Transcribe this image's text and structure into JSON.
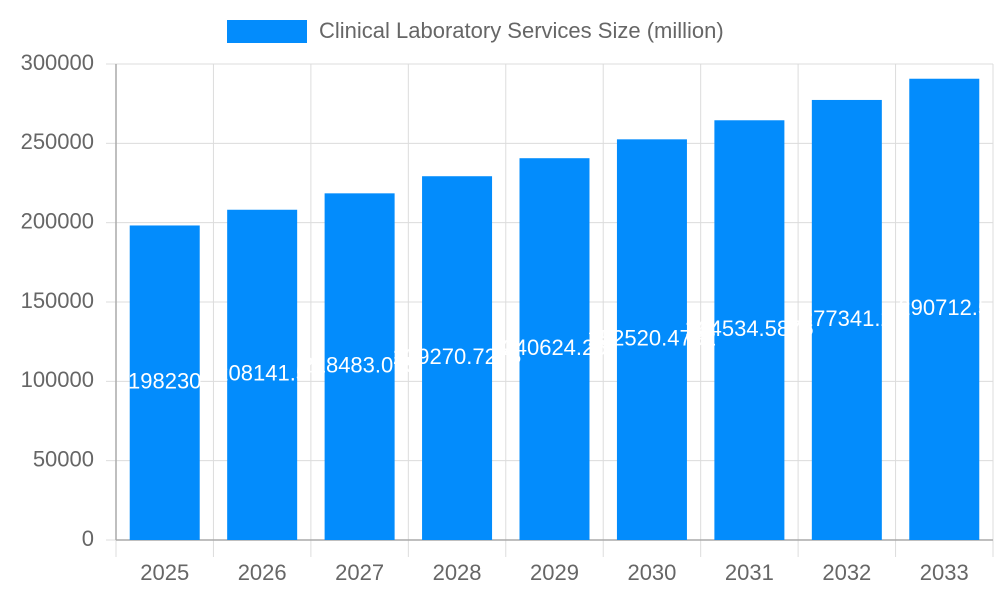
{
  "chart_data": {
    "type": "bar",
    "series": [
      {
        "name": "Clinical Laboratory Services Size (million)",
        "color": "#038cfc",
        "values": [
          198230,
          208141.5,
          218483.075,
          229270.7275,
          240624.26,
          252520.4732,
          264534.5875,
          277341.2,
          290712.5
        ]
      }
    ],
    "categories": [
      "2025",
      "2026",
      "2027",
      "2028",
      "2029",
      "2030",
      "2031",
      "2032",
      "2033"
    ],
    "ylim": [
      0,
      300000
    ],
    "yticks": [
      0,
      50000,
      100000,
      150000,
      200000,
      250000,
      300000
    ],
    "grid": true,
    "legend": "top"
  }
}
